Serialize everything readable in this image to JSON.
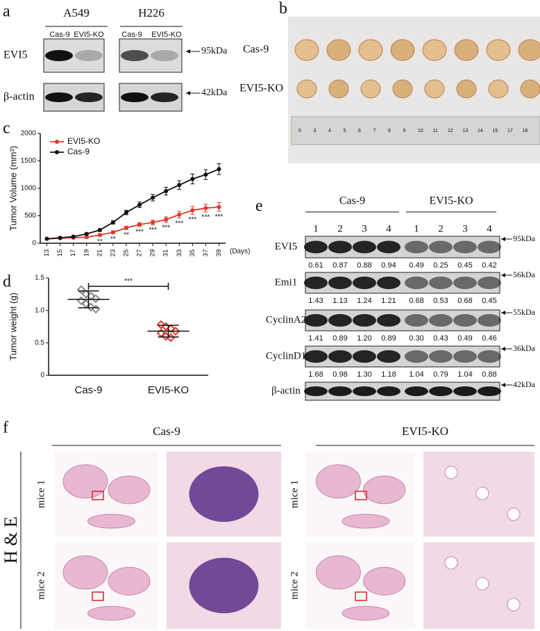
{
  "panel_labels": [
    "a",
    "b",
    "c",
    "d",
    "e",
    "f"
  ],
  "panel_a": {
    "cell_lines": [
      "A549",
      "H226"
    ],
    "lanes": [
      "Cas-9",
      "EVI5-KO",
      "Cas-9",
      "EVI5-KO"
    ],
    "rows": [
      "EVI5",
      "β-actin"
    ],
    "sizes": [
      "95kDa",
      "42kDa"
    ]
  },
  "panel_b": {
    "rows": [
      "Cas-9",
      "EVI5-KO"
    ],
    "ruler": [
      "0",
      "3",
      "4",
      "5",
      "6",
      "7",
      "8",
      "9",
      "10",
      "11",
      "12",
      "13",
      "14",
      "15",
      "17",
      "18"
    ]
  },
  "chart_data": [
    {
      "type": "line",
      "ylabel": "Tumor Volume (mm³)",
      "xlabel": "(Days)",
      "x": [
        13,
        15,
        17,
        19,
        21,
        23,
        25,
        27,
        29,
        31,
        33,
        35,
        37,
        39
      ],
      "xlim": [
        12,
        40
      ],
      "xticks": [
        13,
        15,
        17,
        19,
        21,
        23,
        25,
        27,
        29,
        31,
        33,
        35,
        37,
        39
      ],
      "ylim": [
        0,
        2000
      ],
      "yticks": [
        0,
        500,
        1000,
        1500,
        2000
      ],
      "legend": "upper left",
      "series": [
        {
          "name": "EVI5-KO",
          "color": "#e0382c",
          "values": [
            80,
            90,
            100,
            110,
            150,
            200,
            280,
            340,
            380,
            430,
            520,
            600,
            640,
            660
          ],
          "errors": [
            10,
            10,
            10,
            15,
            20,
            25,
            30,
            35,
            40,
            50,
            60,
            70,
            70,
            80
          ]
        },
        {
          "name": "Cas-9",
          "color": "#111111",
          "values": [
            80,
            100,
            120,
            170,
            240,
            380,
            560,
            700,
            830,
            950,
            1060,
            1170,
            1250,
            1350
          ],
          "errors": [
            10,
            10,
            15,
            20,
            25,
            30,
            40,
            50,
            60,
            70,
            80,
            90,
            90,
            100
          ]
        }
      ],
      "annotations": [
        null,
        null,
        null,
        null,
        "**",
        "**",
        "**",
        "***",
        "***",
        "***",
        "***",
        "***",
        "***",
        "***"
      ]
    },
    {
      "type": "dot",
      "ylabel": "Tumor weight (g)",
      "categories": [
        "Cas-9",
        "EVI5-KO"
      ],
      "colors": [
        "#8a8a8a",
        "#e0382c"
      ],
      "values": [
        [
          1.32,
          1.25,
          1.22,
          1.18,
          1.15,
          1.1,
          1.05,
          1.02
        ],
        [
          0.78,
          0.75,
          0.72,
          0.68,
          0.65,
          0.6,
          0.58
        ]
      ],
      "means": [
        1.17,
        0.68
      ],
      "sds": [
        0.13,
        0.09
      ],
      "significance": "***",
      "ylim": [
        0,
        1.5
      ],
      "yticks": [
        0,
        0.5,
        {
          "value": 1,
          "label": "1.0"
        },
        1.5
      ]
    }
  ],
  "panel_e": {
    "groups": [
      "Cas-9",
      "EVI5-KO"
    ],
    "lanes": [
      "1",
      "2",
      "3",
      "4",
      "1",
      "2",
      "3",
      "4"
    ],
    "rows": [
      {
        "name": "EVI5",
        "size": "95kDa",
        "values": [
          "0.61",
          "0.87",
          "0.88",
          "0.94",
          "0.49",
          "0.25",
          "0.45",
          "0.42"
        ]
      },
      {
        "name": "Emi1",
        "size": "56kDa",
        "values": [
          "1.43",
          "1.13",
          "1.24",
          "1.21",
          "0.68",
          "0.53",
          "0.68",
          "0.45"
        ]
      },
      {
        "name": "CyclinA2",
        "size": "55kDa",
        "values": [
          "1.41",
          "0.89",
          "1.20",
          "0.89",
          "0.30",
          "0.43",
          "0.49",
          "0.46"
        ]
      },
      {
        "name": "CyclinD1",
        "size": "36kDa",
        "values": [
          "1.68",
          "0.98",
          "1.30",
          "1.18",
          "1.04",
          "0.79",
          "1.04",
          "0.88"
        ]
      },
      {
        "name": "β-actin",
        "size": "42kDa"
      }
    ]
  },
  "panel_f": {
    "columns": [
      "Cas-9",
      "EVI5-KO"
    ],
    "stain": "H & E",
    "rows": [
      "mice 1",
      "mice 2"
    ]
  }
}
